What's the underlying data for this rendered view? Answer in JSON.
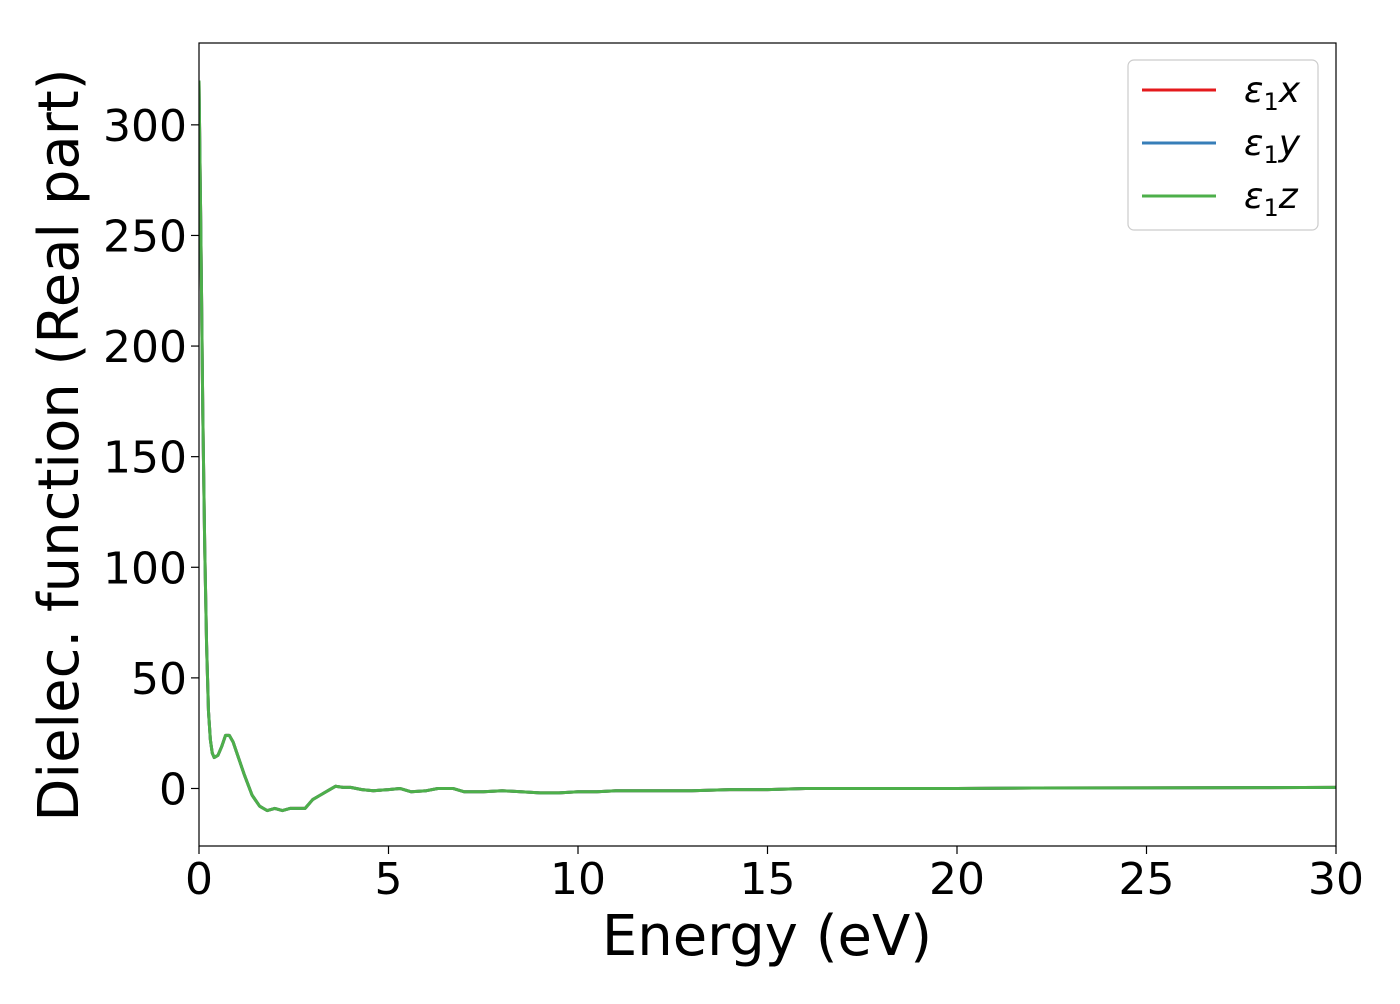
{
  "chart_data": {
    "type": "line",
    "title": "",
    "xlabel": "Energy (eV)",
    "ylabel": "Dielec. function (Real part)",
    "xlim": [
      0,
      30
    ],
    "ylim": [
      -26,
      337
    ],
    "xticks": [
      0,
      5,
      10,
      15,
      20,
      25,
      30
    ],
    "yticks": [
      0,
      50,
      100,
      150,
      200,
      250,
      300
    ],
    "grid": false,
    "legend_position": "top-right",
    "series": [
      {
        "name": "x",
        "symbol": "ε",
        "subscript": "1",
        "color": "#e41a1c",
        "x": [
          0.0,
          0.05,
          0.1,
          0.15,
          0.2,
          0.25,
          0.3,
          0.35,
          0.4,
          0.5,
          0.6,
          0.7,
          0.8,
          0.9,
          1.0,
          1.2,
          1.4,
          1.6,
          1.8,
          2.0,
          2.2,
          2.4,
          2.6,
          2.8,
          3.0,
          3.2,
          3.4,
          3.6,
          3.8,
          4.0,
          4.3,
          4.6,
          5.0,
          5.3,
          5.6,
          6.0,
          6.3,
          6.7,
          7.0,
          7.5,
          8.0,
          8.5,
          9.0,
          9.5,
          10.0,
          10.5,
          11.0,
          12.0,
          13.0,
          14.0,
          15.0,
          16.0,
          17.0,
          18.0,
          20.0,
          22.0,
          25.0,
          28.0,
          30.0
        ],
        "y": [
          320,
          250,
          170,
          110,
          65,
          35,
          22,
          16,
          14,
          15,
          19,
          24,
          24,
          21,
          16,
          6,
          -3,
          -8,
          -10,
          -9,
          -10,
          -9,
          -9,
          -9,
          -5,
          -3,
          -1,
          1,
          0.5,
          0.5,
          -0.5,
          -1,
          -0.5,
          0,
          -1.5,
          -1,
          0,
          0,
          -1.5,
          -1.5,
          -1,
          -1.5,
          -2,
          -2,
          -1.5,
          -1.5,
          -1,
          -1,
          -1,
          -0.5,
          -0.5,
          0,
          0,
          0,
          0,
          0.2,
          0.3,
          0.4,
          0.5
        ]
      },
      {
        "name": "y",
        "symbol": "ε",
        "subscript": "1",
        "color": "#377eb8",
        "x": [
          0.0,
          0.05,
          0.1,
          0.15,
          0.2,
          0.25,
          0.3,
          0.35,
          0.4,
          0.5,
          0.6,
          0.7,
          0.8,
          0.9,
          1.0,
          1.2,
          1.4,
          1.6,
          1.8,
          2.0,
          2.2,
          2.4,
          2.6,
          2.8,
          3.0,
          3.2,
          3.4,
          3.6,
          3.8,
          4.0,
          4.3,
          4.6,
          5.0,
          5.3,
          5.6,
          6.0,
          6.3,
          6.7,
          7.0,
          7.5,
          8.0,
          8.5,
          9.0,
          9.5,
          10.0,
          10.5,
          11.0,
          12.0,
          13.0,
          14.0,
          15.0,
          16.0,
          17.0,
          18.0,
          20.0,
          22.0,
          25.0,
          28.0,
          30.0
        ],
        "y": [
          320,
          250,
          170,
          110,
          65,
          35,
          22,
          16,
          14,
          15,
          19,
          24,
          24,
          21,
          16,
          6,
          -3,
          -8,
          -10,
          -9,
          -10,
          -9,
          -9,
          -9,
          -5,
          -3,
          -1,
          1,
          0.5,
          0.5,
          -0.5,
          -1,
          -0.5,
          0,
          -1.5,
          -1,
          0,
          0,
          -1.5,
          -1.5,
          -1,
          -1.5,
          -2,
          -2,
          -1.5,
          -1.5,
          -1,
          -1,
          -1,
          -0.5,
          -0.5,
          0,
          0,
          0,
          0,
          0.2,
          0.3,
          0.4,
          0.5
        ]
      },
      {
        "name": "z",
        "symbol": "ε",
        "subscript": "1",
        "color": "#4daf4a",
        "x": [
          0.0,
          0.05,
          0.1,
          0.15,
          0.2,
          0.25,
          0.3,
          0.35,
          0.4,
          0.5,
          0.6,
          0.7,
          0.8,
          0.9,
          1.0,
          1.2,
          1.4,
          1.6,
          1.8,
          2.0,
          2.2,
          2.4,
          2.6,
          2.8,
          3.0,
          3.2,
          3.4,
          3.6,
          3.8,
          4.0,
          4.3,
          4.6,
          5.0,
          5.3,
          5.6,
          6.0,
          6.3,
          6.7,
          7.0,
          7.5,
          8.0,
          8.5,
          9.0,
          9.5,
          10.0,
          10.5,
          11.0,
          12.0,
          13.0,
          14.0,
          15.0,
          16.0,
          17.0,
          18.0,
          20.0,
          22.0,
          25.0,
          28.0,
          30.0
        ],
        "y": [
          320,
          250,
          170,
          110,
          65,
          35,
          22,
          16,
          14,
          15,
          19,
          24,
          24,
          21,
          16,
          6,
          -3,
          -8,
          -10,
          -9,
          -10,
          -9,
          -9,
          -9,
          -5,
          -3,
          -1,
          1,
          0.5,
          0.5,
          -0.5,
          -1,
          -0.5,
          0,
          -1.5,
          -1,
          0,
          0,
          -1.5,
          -1.5,
          -1,
          -1.5,
          -2,
          -2,
          -1.5,
          -1.5,
          -1,
          -1,
          -1,
          -0.5,
          -0.5,
          0,
          0,
          0,
          0,
          0.2,
          0.3,
          0.4,
          0.5
        ]
      }
    ]
  }
}
